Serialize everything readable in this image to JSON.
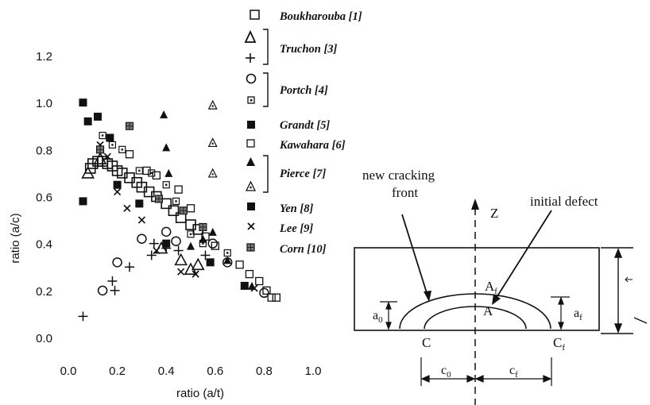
{
  "chart_data": {
    "type": "scatter",
    "xlabel": "ratio (a/t)",
    "ylabel": "ratio (a/c)",
    "xlim": [
      0.0,
      1.0
    ],
    "ylim": [
      0.0,
      1.2
    ],
    "xticks": [
      "0.0",
      "0.2",
      "0.4",
      "0.6",
      "0.8",
      "1.0"
    ],
    "yticks": [
      "0.0",
      "0.2",
      "0.4",
      "0.6",
      "0.8",
      "1.0",
      "1.2"
    ],
    "legend_placement": "right",
    "series": [
      {
        "name": "Boukharouba [1]",
        "marker": "square-open",
        "points": [
          [
            0.09,
            0.72
          ],
          [
            0.1,
            0.74
          ],
          [
            0.12,
            0.75
          ],
          [
            0.14,
            0.75
          ],
          [
            0.16,
            0.74
          ],
          [
            0.18,
            0.73
          ],
          [
            0.2,
            0.71
          ],
          [
            0.22,
            0.7
          ],
          [
            0.25,
            0.68
          ],
          [
            0.28,
            0.66
          ],
          [
            0.3,
            0.64
          ],
          [
            0.33,
            0.62
          ],
          [
            0.36,
            0.6
          ],
          [
            0.4,
            0.57
          ],
          [
            0.43,
            0.54
          ],
          [
            0.46,
            0.51
          ],
          [
            0.5,
            0.48
          ],
          [
            0.53,
            0.46
          ]
        ]
      },
      {
        "name": "Truchon [3]",
        "marker": "triangle-open",
        "points": [
          [
            0.08,
            0.7
          ],
          [
            0.13,
            0.76
          ],
          [
            0.38,
            0.38
          ],
          [
            0.46,
            0.33
          ],
          [
            0.5,
            0.29
          ],
          [
            0.53,
            0.31
          ]
        ]
      },
      {
        "name": "Truchon [3]",
        "marker": "plus",
        "points": [
          [
            0.06,
            0.09
          ],
          [
            0.18,
            0.24
          ],
          [
            0.19,
            0.2
          ],
          [
            0.25,
            0.3
          ],
          [
            0.34,
            0.35
          ],
          [
            0.35,
            0.4
          ],
          [
            0.4,
            0.38
          ],
          [
            0.45,
            0.37
          ],
          [
            0.56,
            0.35
          ]
        ]
      },
      {
        "name": "Portch [4]",
        "marker": "circle-open",
        "points": [
          [
            0.14,
            0.2
          ],
          [
            0.2,
            0.32
          ],
          [
            0.3,
            0.42
          ],
          [
            0.4,
            0.45
          ],
          [
            0.44,
            0.41
          ],
          [
            0.59,
            0.4
          ],
          [
            0.65,
            0.32
          ],
          [
            0.8,
            0.19
          ]
        ]
      },
      {
        "name": "Portch [4]",
        "marker": "square-dot",
        "points": [
          [
            0.14,
            0.86
          ],
          [
            0.18,
            0.82
          ],
          [
            0.22,
            0.8
          ],
          [
            0.29,
            0.71
          ],
          [
            0.34,
            0.7
          ],
          [
            0.4,
            0.65
          ],
          [
            0.44,
            0.58
          ],
          [
            0.5,
            0.44
          ],
          [
            0.55,
            0.4
          ],
          [
            0.65,
            0.36
          ]
        ]
      },
      {
        "name": "Grandt [5]",
        "marker": "square-filled",
        "points": [
          [
            0.06,
            0.58
          ],
          [
            0.08,
            0.92
          ],
          [
            0.12,
            0.94
          ],
          [
            0.17,
            0.85
          ]
        ]
      },
      {
        "name": "Kawahara [6]",
        "marker": "square-open-small",
        "points": [
          [
            0.25,
            0.78
          ],
          [
            0.32,
            0.71
          ],
          [
            0.36,
            0.69
          ],
          [
            0.45,
            0.63
          ],
          [
            0.5,
            0.55
          ],
          [
            0.56,
            0.43
          ],
          [
            0.6,
            0.39
          ],
          [
            0.7,
            0.31
          ],
          [
            0.74,
            0.27
          ],
          [
            0.78,
            0.24
          ],
          [
            0.81,
            0.2
          ],
          [
            0.83,
            0.17
          ],
          [
            0.85,
            0.17
          ]
        ]
      },
      {
        "name": "Pierce [7]",
        "marker": "triangle-filled",
        "points": [
          [
            0.39,
            0.95
          ],
          [
            0.4,
            0.81
          ],
          [
            0.41,
            0.7
          ],
          [
            0.5,
            0.39
          ],
          [
            0.55,
            0.42
          ],
          [
            0.59,
            0.45
          ],
          [
            0.65,
            0.33
          ],
          [
            0.75,
            0.22
          ]
        ]
      },
      {
        "name": "Pierce [7]",
        "marker": "triangle-dot",
        "points": [
          [
            0.59,
            0.99
          ],
          [
            0.59,
            0.83
          ],
          [
            0.59,
            0.7
          ]
        ]
      },
      {
        "name": "Yen [8]",
        "marker": "square-filled",
        "points": [
          [
            0.06,
            1.0
          ],
          [
            0.2,
            0.65
          ],
          [
            0.29,
            0.57
          ],
          [
            0.4,
            0.4
          ],
          [
            0.58,
            0.32
          ],
          [
            0.72,
            0.22
          ]
        ]
      },
      {
        "name": "Lee [9]",
        "marker": "cross",
        "points": [
          [
            0.13,
            0.82
          ],
          [
            0.16,
            0.77
          ],
          [
            0.2,
            0.62
          ],
          [
            0.24,
            0.55
          ],
          [
            0.3,
            0.5
          ],
          [
            0.36,
            0.37
          ],
          [
            0.46,
            0.28
          ],
          [
            0.52,
            0.27
          ],
          [
            0.76,
            0.21
          ]
        ]
      },
      {
        "name": "Corn [10]",
        "marker": "square-grid",
        "points": [
          [
            0.25,
            0.9
          ],
          [
            0.13,
            0.8
          ],
          [
            0.37,
            0.59
          ],
          [
            0.47,
            0.54
          ],
          [
            0.55,
            0.47
          ]
        ]
      }
    ]
  },
  "diagram": {
    "axis_label": "Z",
    "label_new_front_line1": "new cracking",
    "label_new_front_line2": "front",
    "label_initial_defect": "initial defect",
    "label_A": "A",
    "label_Af": "A",
    "label_Af_sub": "f",
    "label_C": "C",
    "label_Cf": "C",
    "label_Cf_sub": "f",
    "label_a0": "a",
    "label_a0_sub": "0",
    "label_af": "a",
    "label_af_sub": "f",
    "label_c0": "c",
    "label_c0_sub": "0",
    "label_cf": "c",
    "label_cf_sub": "f"
  }
}
